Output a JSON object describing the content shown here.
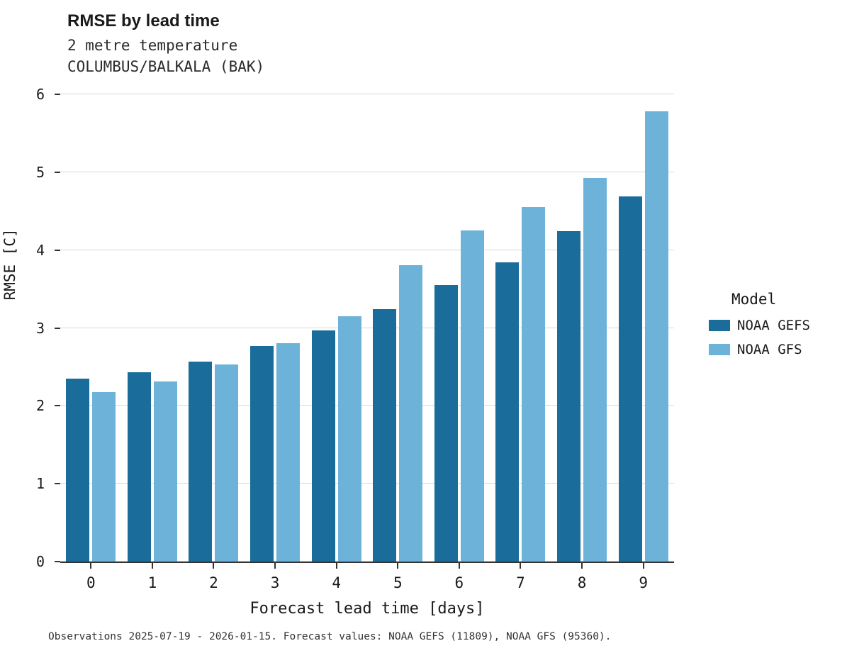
{
  "title": "RMSE by lead time",
  "subtitle_line1": "2 metre temperature",
  "subtitle_line2": "COLUMBUS/BALKALA (BAK)",
  "caption": "Observations 2025-07-19 - 2026-01-15. Forecast values: NOAA GEFS (11809), NOAA GFS (95360).",
  "legend": {
    "title": "Model",
    "items": [
      {
        "label": "NOAA GEFS",
        "color": "#1a6d9a"
      },
      {
        "label": "NOAA GFS",
        "color": "#6db3d9"
      }
    ]
  },
  "chart_data": {
    "type": "bar",
    "title": "RMSE by lead time",
    "subtitle": "2 metre temperature COLUMBUS/BALKALA (BAK)",
    "xlabel": "Forecast lead time [days]",
    "ylabel": "RMSE [C]",
    "categories": [
      "0",
      "1",
      "2",
      "3",
      "4",
      "5",
      "6",
      "7",
      "8",
      "9"
    ],
    "series": [
      {
        "name": "NOAA GEFS",
        "color": "#1a6d9a",
        "values": [
          2.35,
          2.43,
          2.57,
          2.77,
          2.97,
          3.24,
          3.55,
          3.84,
          4.24,
          4.69
        ]
      },
      {
        "name": "NOAA GFS",
        "color": "#6db3d9",
        "values": [
          2.18,
          2.31,
          2.53,
          2.8,
          3.15,
          3.81,
          4.25,
          4.55,
          4.93,
          5.78
        ]
      }
    ],
    "ylim": [
      0,
      6
    ],
    "yticks": [
      0,
      1,
      2,
      3,
      4,
      5,
      6
    ],
    "grid": true,
    "legend_position": "right",
    "legend_title": "Model"
  }
}
